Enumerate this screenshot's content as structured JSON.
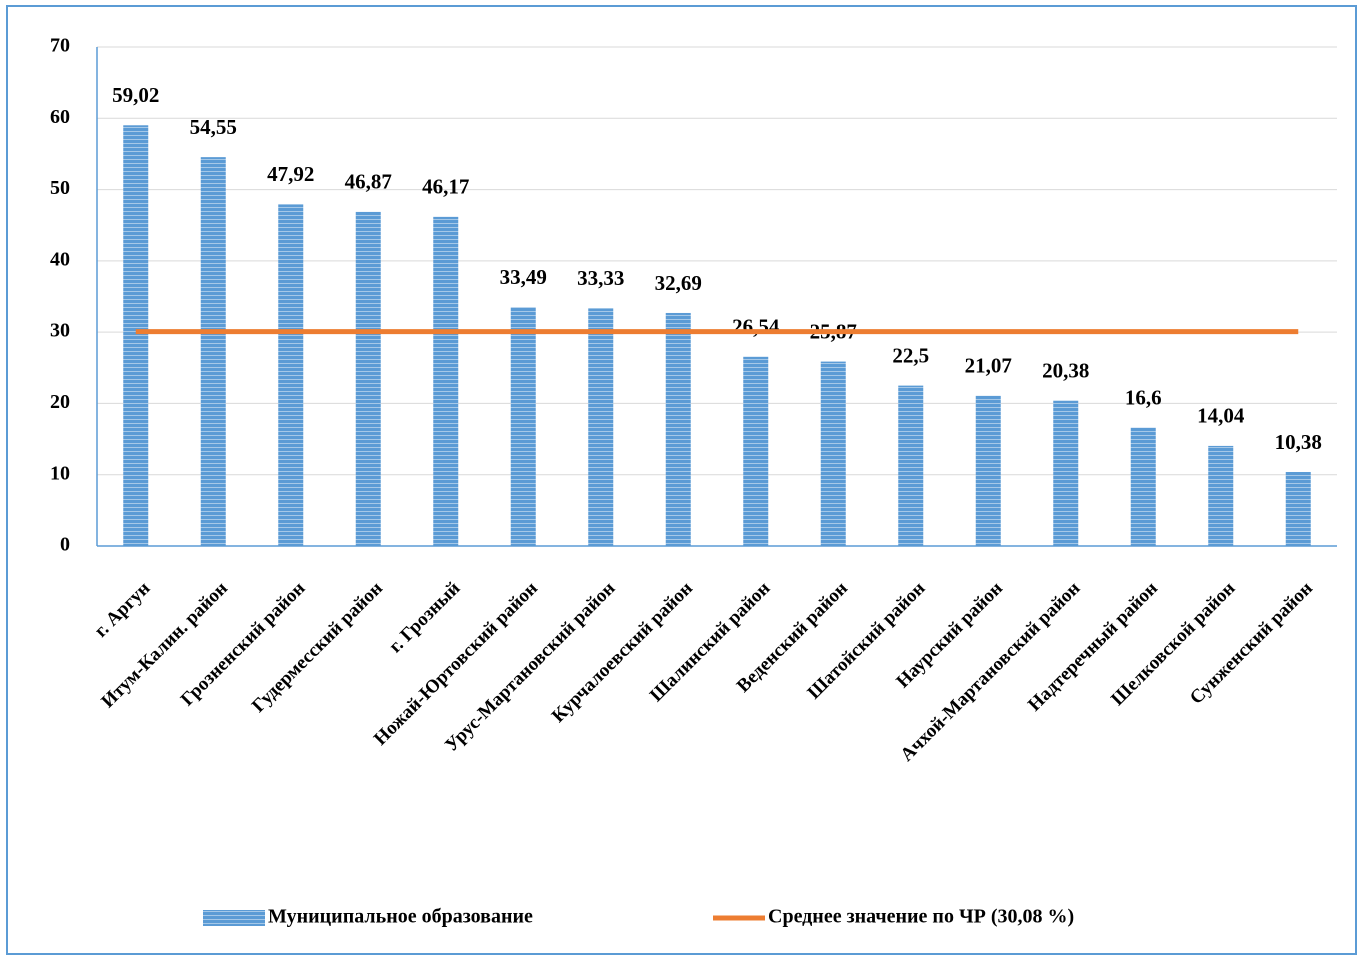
{
  "chart_data": {
    "type": "bar",
    "categories": [
      "г. Аргун",
      "Итум-Калин. район",
      "Грозненский район",
      "Гудермесский район",
      "г. Грозный",
      "Ножай-Юртовский район",
      "Урус-Мартановский район",
      "Курчалоевский район",
      "Шалинский район",
      "Веденский район",
      "Шатойский район",
      "Наурский район",
      "Ачхой-Мартановский район",
      "Надтеречный район",
      "Шелковской район",
      "Сунженский район"
    ],
    "series": [
      {
        "name": "Муниципальное образование",
        "type": "bar",
        "color": "#5b9bd5",
        "values": [
          59.02,
          54.55,
          47.92,
          46.87,
          46.17,
          33.49,
          33.33,
          32.69,
          26.54,
          25.87,
          22.5,
          21.07,
          20.38,
          16.6,
          14.04,
          10.38
        ],
        "value_labels": [
          "59,02",
          "54,55",
          "47,92",
          "46,87",
          "46,17",
          "33,49",
          "33,33",
          "32,69",
          "26,54",
          "25,87",
          "22,5",
          "21,07",
          "20,38",
          "16,6",
          "14,04",
          "10,38"
        ]
      },
      {
        "name": "Среднее значение по ЧР (30,08 %)",
        "type": "line",
        "color": "#ed7d31",
        "values": [
          30.08,
          30.08,
          30.08,
          30.08,
          30.08,
          30.08,
          30.08,
          30.08,
          30.08,
          30.08,
          30.08,
          30.08,
          30.08,
          30.08,
          30.08,
          30.08
        ]
      }
    ],
    "ylim": [
      0,
      70
    ],
    "yticks": [
      0,
      10,
      20,
      30,
      40,
      50,
      60,
      70
    ],
    "grid": true,
    "legend": "bottom"
  }
}
